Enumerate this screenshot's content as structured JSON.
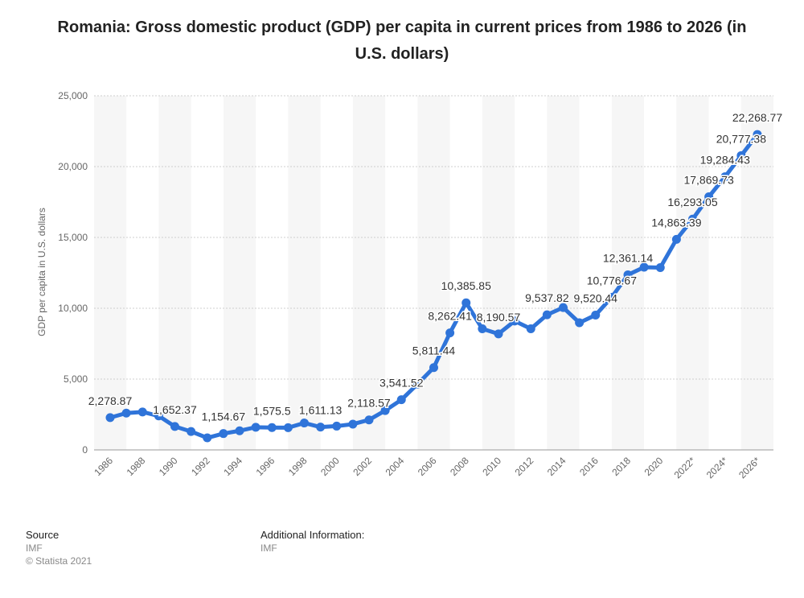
{
  "chart_data": {
    "type": "line",
    "title": "Romania: Gross domestic product (GDP) per capita in current prices from 1986 to 2026 (in U.S. dollars)",
    "ylabel": "GDP per capita in U.S. dollars",
    "xlabel": "",
    "ylim": [
      0,
      25000
    ],
    "yticks": [
      "0",
      "5,000",
      "10,000",
      "15,000",
      "20,000",
      "25,000"
    ],
    "xtick_labels": [
      "1986",
      "1988",
      "1990",
      "1992",
      "1994",
      "1996",
      "1998",
      "2000",
      "2002",
      "2004",
      "2006",
      "2008",
      "2010",
      "2012",
      "2014",
      "2016",
      "2018",
      "2020",
      "2022*",
      "2024*",
      "2026*"
    ],
    "x": [
      "1986",
      "1987",
      "1988",
      "1989",
      "1990",
      "1991",
      "1992",
      "1993",
      "1994",
      "1995",
      "1996",
      "1997",
      "1998",
      "1999",
      "2000",
      "2001",
      "2002",
      "2003",
      "2004",
      "2005",
      "2006",
      "2007",
      "2008",
      "2009",
      "2010",
      "2011",
      "2012",
      "2013",
      "2014",
      "2015",
      "2016",
      "2017",
      "2018",
      "2019",
      "2020",
      "2021*",
      "2022*",
      "2023*",
      "2024*",
      "2025*",
      "2026*"
    ],
    "values": [
      2278.87,
      2600,
      2680,
      2400,
      1652.37,
      1300,
      850,
      1154.67,
      1350,
      1600,
      1575.5,
      1570,
      1900,
      1611.13,
      1680,
      1820,
      2118.57,
      2780,
      3541.52,
      4650,
      5811.44,
      8262.41,
      10385.85,
      8550,
      8190.57,
      9100,
      8550,
      9537.82,
      10050,
      8980,
      9520.44,
      10776.67,
      12361.14,
      12900,
      12870,
      14863.39,
      16293.05,
      17869.73,
      19284.43,
      20777.38,
      22268.77
    ],
    "data_labels": [
      {
        "index": 0,
        "text": "2,278.87"
      },
      {
        "index": 4,
        "text": "1,652.37"
      },
      {
        "index": 7,
        "text": "1,154.67"
      },
      {
        "index": 10,
        "text": "1,575.5"
      },
      {
        "index": 13,
        "text": "1,611.13"
      },
      {
        "index": 16,
        "text": "2,118.57"
      },
      {
        "index": 18,
        "text": "3,541.52"
      },
      {
        "index": 20,
        "text": "5,811.44"
      },
      {
        "index": 21,
        "text": "8,262.41"
      },
      {
        "index": 22,
        "text": "10,385.85"
      },
      {
        "index": 24,
        "text": "8,190.57"
      },
      {
        "index": 27,
        "text": "9,537.82"
      },
      {
        "index": 30,
        "text": "9,520.44"
      },
      {
        "index": 31,
        "text": "10,776.67"
      },
      {
        "index": 32,
        "text": "12,361.14"
      },
      {
        "index": 35,
        "text": "14,863.39"
      },
      {
        "index": 36,
        "text": "16,293.05"
      },
      {
        "index": 37,
        "text": "17,869.73"
      },
      {
        "index": 38,
        "text": "19,284.43"
      },
      {
        "index": 39,
        "text": "20,777.38"
      },
      {
        "index": 40,
        "text": "22,268.77"
      }
    ],
    "grid": true,
    "line_color": "#2f74d9"
  },
  "footer": {
    "source_heading": "Source",
    "source_value": "IMF",
    "copyright": "© Statista 2021",
    "additional_heading": "Additional Information:",
    "additional_value": "IMF"
  }
}
